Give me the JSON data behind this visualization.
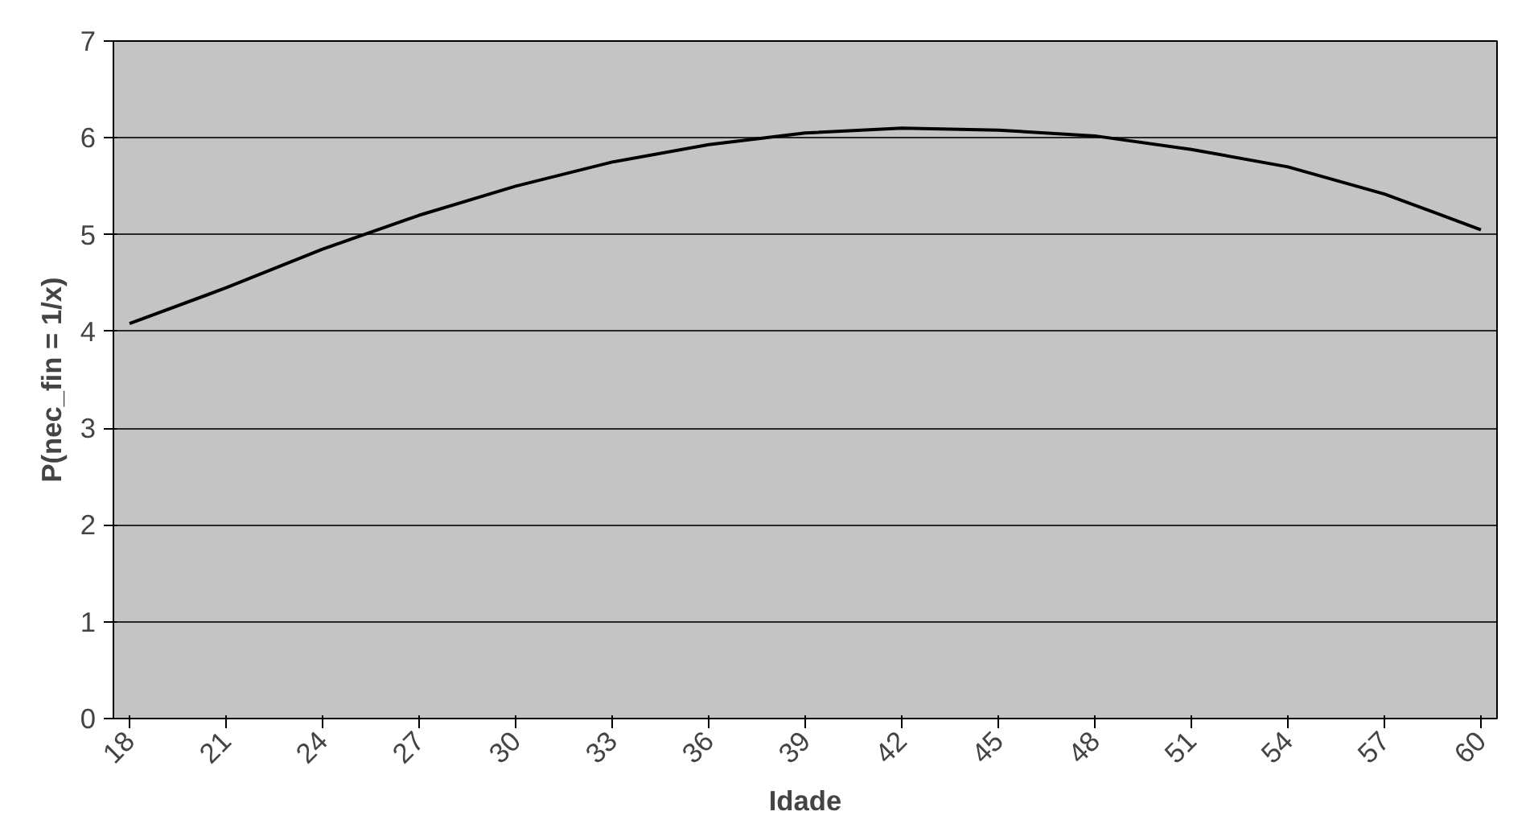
{
  "chart_data": {
    "type": "line",
    "xlabel": "Idade",
    "ylabel": "P(nec_fin = 1/x)",
    "x": [
      18,
      21,
      24,
      27,
      30,
      33,
      36,
      39,
      42,
      45,
      48,
      51,
      54,
      57,
      60
    ],
    "series": [
      {
        "color": "#000000",
        "values": [
          4.08,
          4.45,
          4.85,
          5.2,
          5.5,
          5.75,
          5.93,
          6.05,
          6.1,
          6.08,
          6.02,
          5.88,
          5.7,
          5.42,
          5.05
        ]
      }
    ],
    "xlim": [
      17.5,
      60.5
    ],
    "xticks": [
      18,
      21,
      24,
      27,
      30,
      33,
      36,
      39,
      42,
      45,
      48,
      51,
      54,
      57,
      60
    ],
    "ylim": [
      0,
      7
    ],
    "yticks": [
      0,
      1,
      2,
      3,
      4,
      5,
      6,
      7
    ],
    "grid": "y",
    "marker": "none",
    "line_style": "solid"
  }
}
